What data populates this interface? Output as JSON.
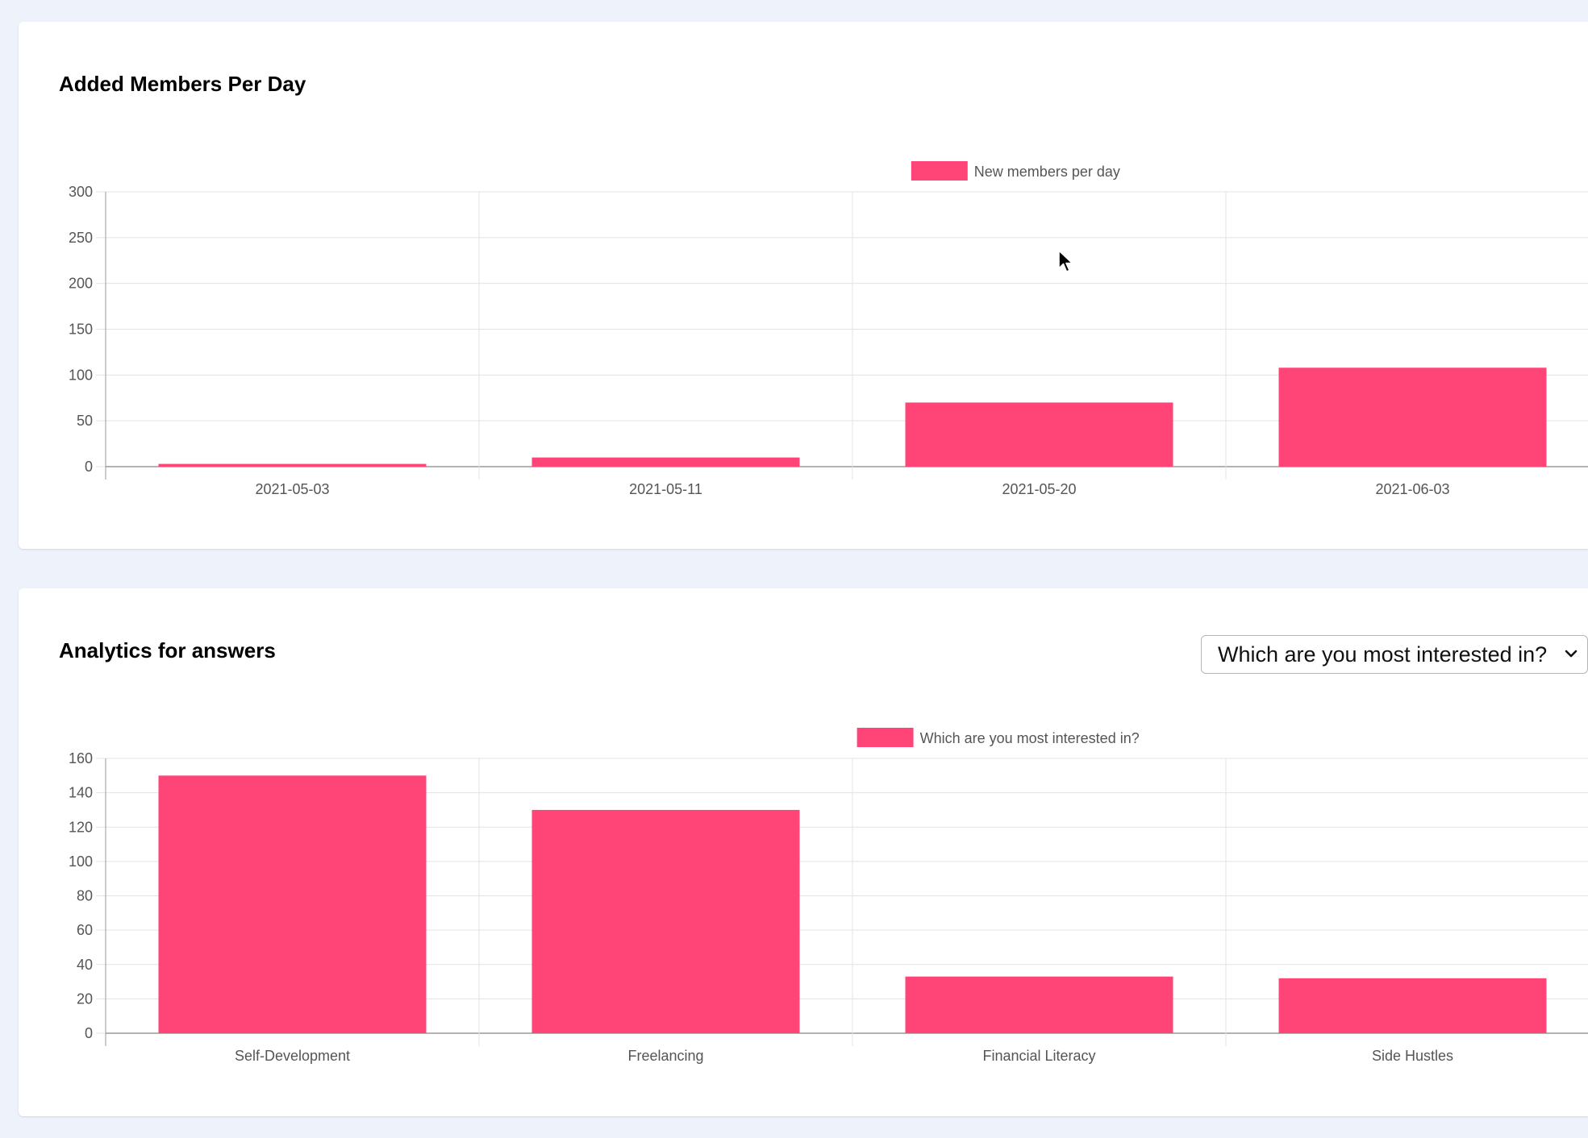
{
  "cards": {
    "members": {
      "title": "Added Members Per Day"
    },
    "answers": {
      "title": "Analytics for answers",
      "select": {
        "value": "Which are you most interested in?",
        "options": [
          "Which are you most interested in?"
        ]
      }
    }
  },
  "colors": {
    "bar": "#ff4577",
    "grid": "#e3e3e3",
    "axis": "#9a9a9a",
    "tick_text": "#555555",
    "page_bg": "#eef3fb"
  },
  "chart_data": [
    {
      "type": "bar",
      "categories": [
        "2021-05-03",
        "2021-05-11",
        "2021-05-20",
        "2021-06-03"
      ],
      "series": [
        {
          "name": "New members per day",
          "values": [
            3,
            10,
            70,
            108
          ]
        }
      ],
      "ylim": [
        0,
        300
      ],
      "yticks": [
        0,
        50,
        100,
        150,
        200,
        250,
        300
      ],
      "legend": "top-center",
      "grid": true
    },
    {
      "type": "bar",
      "categories": [
        "Self-Development",
        "Freelancing",
        "Financial Literacy",
        "Side Hustles"
      ],
      "series": [
        {
          "name": "Which are you most interested in?",
          "values": [
            150,
            130,
            33,
            32
          ]
        }
      ],
      "ylim": [
        0,
        160
      ],
      "yticks": [
        0,
        20,
        40,
        60,
        80,
        100,
        120,
        140,
        160
      ],
      "legend": "top-center",
      "grid": true
    }
  ],
  "icons": {
    "select_chevron": "chevron-down-icon",
    "cursor": "mouse-pointer-icon"
  }
}
